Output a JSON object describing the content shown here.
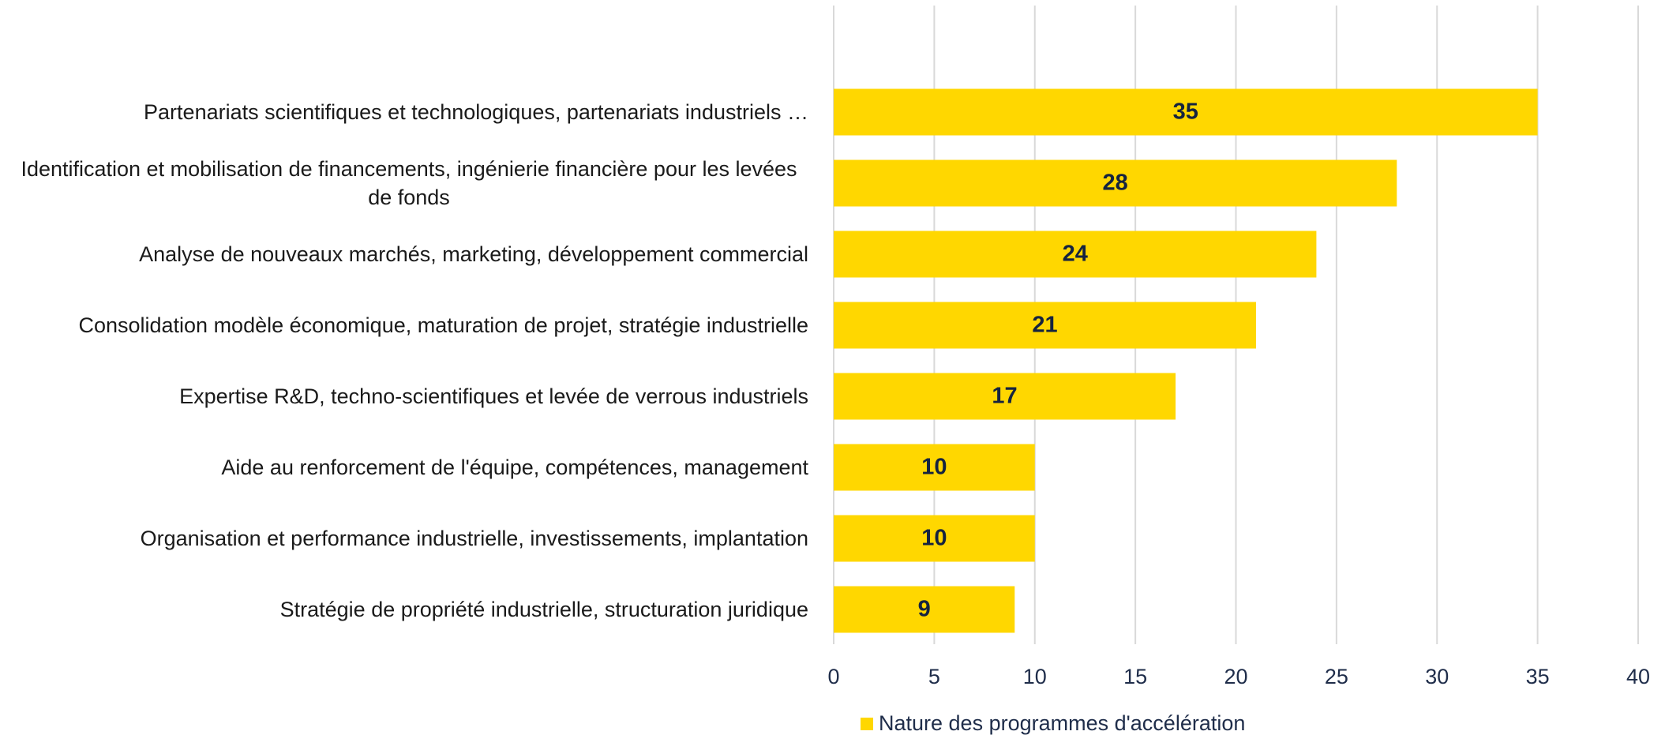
{
  "chart_data": {
    "type": "bar",
    "orientation": "horizontal",
    "categories": [
      "Partenariats scientifiques et technologiques, partenariats industriels …",
      "Identification et mobilisation de financements, ingénierie financière pour les levées de fonds",
      "Analyse de nouveaux marchés, marketing, développement commercial",
      "Consolidation modèle économique, maturation de projet, stratégie industrielle",
      "Expertise R&D, techno-scientifiques et levée de verrous industriels",
      "Aide au renforcement de l'équipe, compétences, management",
      "Organisation et performance industrielle, investissements, implantation",
      "Stratégie de propriété industrielle, structuration juridique"
    ],
    "series": [
      {
        "name": "Nature des programmes d'accélération",
        "color": "#FFD700",
        "values": [
          35,
          28,
          24,
          21,
          17,
          10,
          10,
          9
        ]
      }
    ],
    "xlim": [
      0,
      40
    ],
    "xticks": [
      0,
      5,
      10,
      15,
      20,
      25,
      30,
      35,
      40
    ],
    "grid": true,
    "legend": "bottom"
  }
}
